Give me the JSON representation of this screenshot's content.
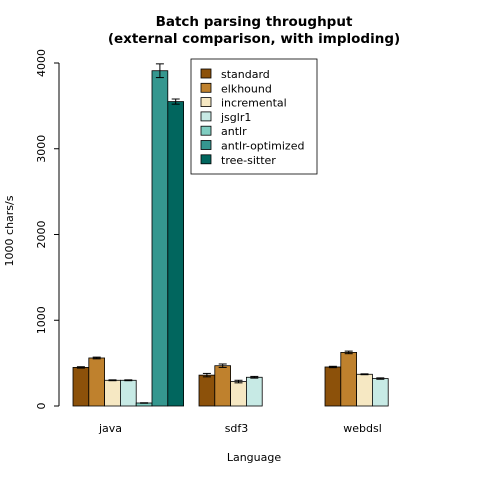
{
  "chart_data": {
    "type": "bar",
    "title": "Batch parsing throughput",
    "subtitle": "(external comparison, with imploding)",
    "xlabel": "Language",
    "ylabel": "1000 chars/s",
    "ylim": [
      0,
      4000
    ],
    "yticks": [
      "0",
      "1000",
      "2000",
      "3000",
      "4000"
    ],
    "categories": [
      "java",
      "sdf3",
      "webdsl"
    ],
    "legend_position": "top-center",
    "grid": false,
    "series": [
      {
        "name": "standard",
        "color": "#8c510a",
        "values": [
          450,
          360,
          455
        ],
        "errors": [
          8,
          20,
          8
        ]
      },
      {
        "name": "elkhound",
        "color": "#bf812d",
        "values": [
          560,
          470,
          625
        ],
        "errors": [
          10,
          20,
          15
        ]
      },
      {
        "name": "incremental",
        "color": "#f6e8c3",
        "values": [
          300,
          285,
          370
        ],
        "errors": [
          5,
          15,
          5
        ]
      },
      {
        "name": "jsglr1",
        "color": "#c7eae5",
        "values": [
          300,
          335,
          320
        ],
        "errors": [
          5,
          10,
          8
        ]
      },
      {
        "name": "antlr",
        "color": "#80cdc1",
        "values": [
          35,
          null,
          null
        ],
        "errors": [
          3,
          null,
          null
        ]
      },
      {
        "name": "antlr-optimized",
        "color": "#35978f",
        "values": [
          3910,
          null,
          null
        ],
        "errors": [
          80,
          null,
          null
        ]
      },
      {
        "name": "tree-sitter",
        "color": "#01665e",
        "values": [
          3550,
          null,
          null
        ],
        "errors": [
          30,
          null,
          null
        ]
      }
    ]
  }
}
